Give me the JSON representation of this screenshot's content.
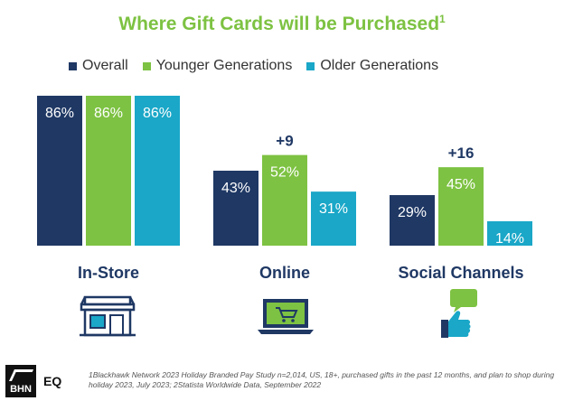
{
  "title": "Where Gift Cards will be Purchased",
  "title_sup": "1",
  "legend": [
    {
      "label": "Overall",
      "color": "#1f3864"
    },
    {
      "label": "Younger Generations",
      "color": "#7dc242"
    },
    {
      "label": "Older Generations",
      "color": "#1aa7c8"
    }
  ],
  "chart_data": {
    "type": "bar",
    "categories": [
      "In-Store",
      "Online",
      "Social Channels"
    ],
    "series": [
      {
        "name": "Overall",
        "values": [
          86,
          43,
          29
        ],
        "labels": [
          "86%",
          "43%",
          "29%"
        ],
        "color": "#1f3864"
      },
      {
        "name": "Younger Generations",
        "values": [
          86,
          52,
          45
        ],
        "labels": [
          "86%",
          "52%",
          "45%"
        ],
        "color": "#7dc242"
      },
      {
        "name": "Older Generations",
        "values": [
          86,
          31,
          14
        ],
        "labels": [
          "86%",
          "31%",
          "14%"
        ],
        "color": "#1aa7c8"
      }
    ],
    "annotations": [
      "",
      "+9",
      "+16"
    ],
    "ylim": [
      0,
      86
    ]
  },
  "icons": [
    "store-icon",
    "laptop-cart-icon",
    "thumbs-up-chat-icon"
  ],
  "footnote": "1Blackhawk Network 2023 Holiday Branded Pay Study n=2,014, US, 18+, purchased gifts in the past 12 months, and plan to shop during holiday 2023, July 2023; 2Statista Worldwide Data, September 2022",
  "logo": {
    "mark": "BHN",
    "suffix": "EQ"
  }
}
